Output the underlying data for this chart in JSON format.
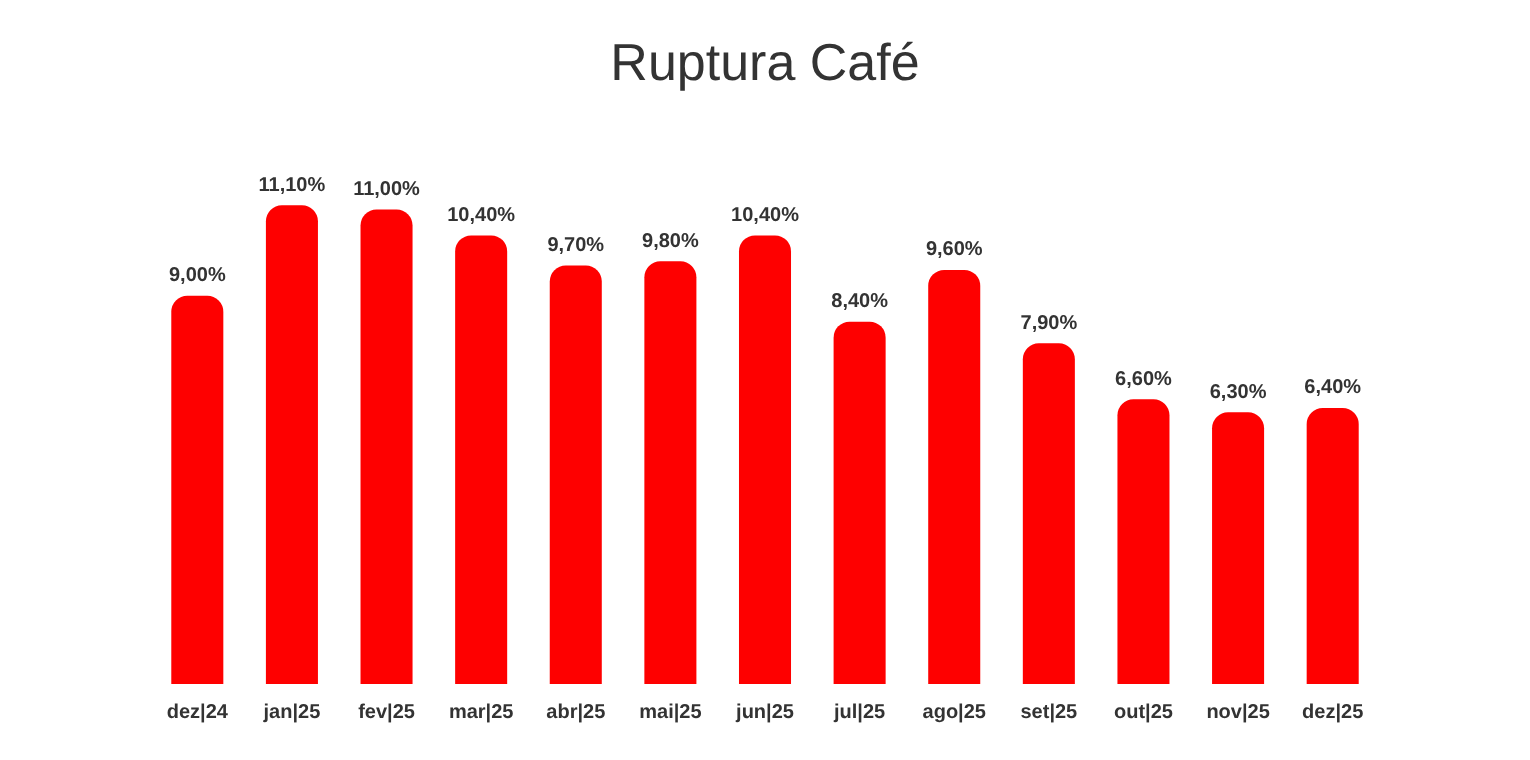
{
  "chart_data": {
    "type": "bar",
    "title": "Ruptura Café",
    "categories": [
      "dez|24",
      "jan|25",
      "fev|25",
      "mar|25",
      "abr|25",
      "mai|25",
      "jun|25",
      "jul|25",
      "ago|25",
      "set|25",
      "out|25",
      "nov|25",
      "dez|25"
    ],
    "values": [
      9.0,
      11.1,
      11.0,
      10.4,
      9.7,
      9.8,
      10.4,
      8.4,
      9.6,
      7.9,
      6.6,
      6.3,
      6.4
    ],
    "value_labels": [
      "9,00%",
      "11,10%",
      "11,00%",
      "10,40%",
      "9,70%",
      "9,80%",
      "10,40%",
      "8,40%",
      "9,60%",
      "7,90%",
      "6,60%",
      "6,30%",
      "6,40%"
    ],
    "color": "#fe0000",
    "grid": false,
    "legend": false
  }
}
